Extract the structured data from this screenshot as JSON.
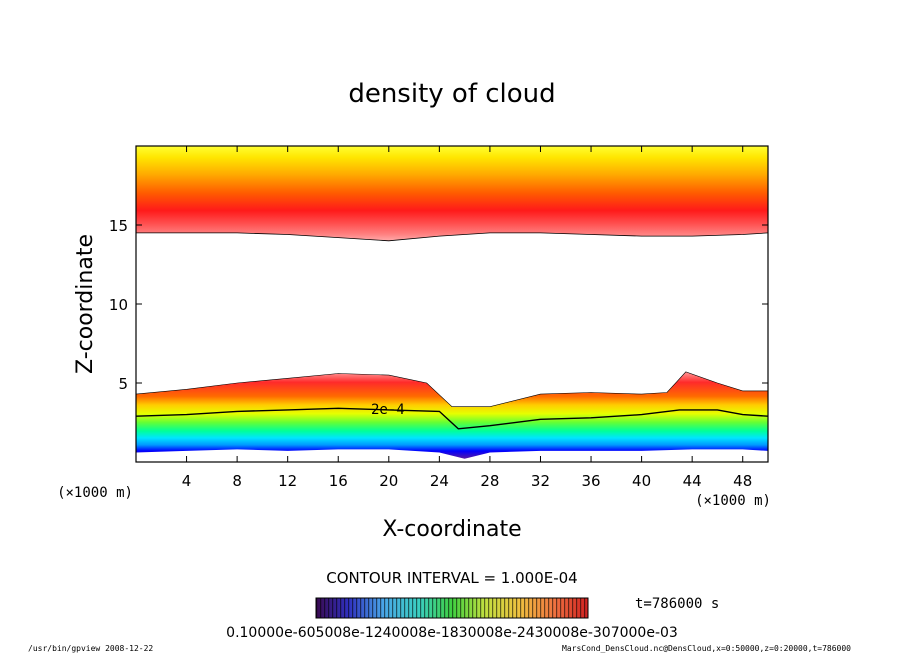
{
  "chart_data": {
    "type": "heatmap",
    "title": "density of cloud",
    "xlabel": "X-coordinate",
    "ylabel": "Z-coordinate",
    "x_units": "(×1000 m)",
    "z_units": "(×1000 m)",
    "xlim": [
      0,
      50
    ],
    "ylim": [
      0,
      20
    ],
    "x_ticks": [
      "4",
      "8",
      "12",
      "16",
      "20",
      "24",
      "28",
      "32",
      "36",
      "40",
      "44",
      "48"
    ],
    "y_ticks": [
      "5",
      "10",
      "15"
    ],
    "contour_interval": "CONTOUR INTERVAL = 1.000E-04",
    "contour_label": "2e-4",
    "time_label": "t=786000 s",
    "colorbar_labels": "0.10000e-605008e-1240008e-1830008e-2430008e-307000e-03",
    "upper_layer_lower_edge_z": [
      [
        0,
        14.5
      ],
      [
        4,
        14.5
      ],
      [
        8,
        14.5
      ],
      [
        12,
        14.4
      ],
      [
        16,
        14.2
      ],
      [
        20,
        14.0
      ],
      [
        24,
        14.3
      ],
      [
        28,
        14.5
      ],
      [
        32,
        14.5
      ],
      [
        36,
        14.4
      ],
      [
        40,
        14.3
      ],
      [
        44,
        14.3
      ],
      [
        48,
        14.4
      ],
      [
        50,
        14.5
      ]
    ],
    "lower_layer_top_z": [
      [
        0,
        4.3
      ],
      [
        4,
        4.6
      ],
      [
        8,
        5.0
      ],
      [
        12,
        5.3
      ],
      [
        16,
        5.6
      ],
      [
        20,
        5.5
      ],
      [
        23,
        5.0
      ],
      [
        25,
        3.5
      ],
      [
        28,
        3.5
      ],
      [
        32,
        4.3
      ],
      [
        36,
        4.4
      ],
      [
        40,
        4.3
      ],
      [
        42,
        4.4
      ],
      [
        43.5,
        5.7
      ],
      [
        46,
        5.0
      ],
      [
        48,
        4.5
      ],
      [
        50,
        4.5
      ]
    ],
    "contour_2e4_z": [
      [
        0,
        2.9
      ],
      [
        4,
        3.0
      ],
      [
        8,
        3.2
      ],
      [
        12,
        3.3
      ],
      [
        16,
        3.4
      ],
      [
        20,
        3.3
      ],
      [
        24,
        3.2
      ],
      [
        25.5,
        2.1
      ],
      [
        28,
        2.3
      ],
      [
        32,
        2.7
      ],
      [
        36,
        2.8
      ],
      [
        40,
        3.0
      ],
      [
        43,
        3.3
      ],
      [
        46,
        3.3
      ],
      [
        48,
        3.0
      ],
      [
        50,
        2.9
      ]
    ],
    "lower_layer_base_z": [
      [
        0,
        0.6
      ],
      [
        4,
        0.7
      ],
      [
        8,
        0.8
      ],
      [
        12,
        0.7
      ],
      [
        16,
        0.8
      ],
      [
        20,
        0.8
      ],
      [
        24,
        0.6
      ],
      [
        26,
        0.2
      ],
      [
        28,
        0.6
      ],
      [
        32,
        0.7
      ],
      [
        36,
        0.7
      ],
      [
        40,
        0.7
      ],
      [
        44,
        0.8
      ],
      [
        48,
        0.8
      ],
      [
        50,
        0.7
      ]
    ],
    "palette": [
      "#5a1aa0",
      "#0000ff",
      "#0099ff",
      "#00e5ff",
      "#00ff66",
      "#99ff00",
      "#e6ff00",
      "#ffcc00",
      "#ff6a00",
      "#ff1a1a",
      "#ff9999"
    ]
  },
  "footer": {
    "left": "/usr/bin/gpview  2008-12-22",
    "right": "MarsCond_DensCloud.nc@DensCloud,x=0:50000,z=0:20000,t=786000"
  }
}
